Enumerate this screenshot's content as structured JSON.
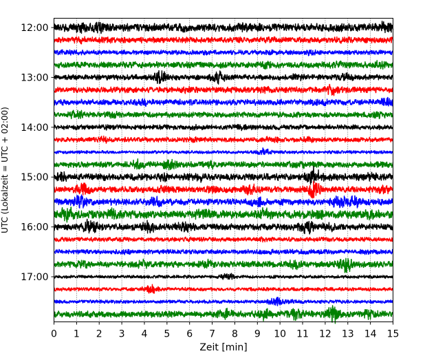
{
  "chart_data": {
    "type": "line",
    "title": "",
    "xlabel": "Zeit  [min]",
    "ylabel": "UTC (Lokalzeit = UTC + 02:00)",
    "xlim": [
      0,
      15
    ],
    "x_ticks": [
      "0",
      "1",
      "2",
      "3",
      "4",
      "5",
      "6",
      "7",
      "8",
      "9",
      "10",
      "11",
      "12",
      "13",
      "14",
      "15"
    ],
    "y_ticks": [
      "12:00",
      "13:00",
      "14:00",
      "15:00",
      "16:00",
      "17:00"
    ],
    "grid": "vertical dotted lines at each minute",
    "trace_interval_minutes": 15,
    "trace_colors": [
      "#000000",
      "#ff0000",
      "#0000ff",
      "#008000"
    ],
    "traces": [
      {
        "start": "12:00",
        "color": "#000000",
        "amp": 0.55,
        "bursts": [
          [
            1.2,
            1.4
          ],
          [
            2.0,
            1.6
          ],
          [
            5.8,
            1.4
          ],
          [
            8.3,
            1.4
          ],
          [
            14.6,
            1.6
          ]
        ]
      },
      {
        "start": "12:15",
        "color": "#ff0000",
        "amp": 0.4,
        "bursts": [
          [
            1.2,
            1.3
          ],
          [
            2.3,
            1.4
          ],
          [
            9.8,
            1.3
          ],
          [
            12.8,
            1.3
          ]
        ]
      },
      {
        "start": "12:30",
        "color": "#0000ff",
        "amp": 0.32,
        "bursts": [
          [
            0.6,
            1.3
          ],
          [
            6.8,
            1.3
          ],
          [
            9.5,
            1.3
          ],
          [
            11.3,
            1.4
          ]
        ]
      },
      {
        "start": "12:45",
        "color": "#008000",
        "amp": 0.42,
        "bursts": [
          [
            9.4,
            1.4
          ],
          [
            12.5,
            1.6
          ],
          [
            14.4,
            1.5
          ]
        ]
      },
      {
        "start": "13:00",
        "color": "#000000",
        "amp": 0.38,
        "bursts": [
          [
            4.7,
            2.8
          ],
          [
            7.3,
            2.6
          ],
          [
            10.8,
            1.5
          ],
          [
            12.9,
            1.6
          ]
        ]
      },
      {
        "start": "13:15",
        "color": "#ff0000",
        "amp": 0.4,
        "bursts": [
          [
            5.9,
            1.3
          ],
          [
            9.4,
            1.3
          ],
          [
            12.3,
            2.2
          ]
        ]
      },
      {
        "start": "13:30",
        "color": "#0000ff",
        "amp": 0.4,
        "bursts": [
          [
            4.0,
            1.5
          ],
          [
            11.7,
            1.7
          ],
          [
            14.7,
            1.8
          ]
        ]
      },
      {
        "start": "13:45",
        "color": "#008000",
        "amp": 0.38,
        "bursts": [
          [
            1.0,
            2.0
          ],
          [
            2.6,
            1.4
          ],
          [
            5.7,
            1.3
          ],
          [
            14.4,
            1.5
          ]
        ]
      },
      {
        "start": "14:00",
        "color": "#000000",
        "amp": 0.34,
        "bursts": [
          [
            2.5,
            1.3
          ],
          [
            6.2,
            1.3
          ],
          [
            8.4,
            1.4
          ]
        ]
      },
      {
        "start": "14:15",
        "color": "#ff0000",
        "amp": 0.32,
        "bursts": [
          [
            2.2,
            1.6
          ],
          [
            6.3,
            1.6
          ],
          [
            9.6,
            1.8
          ],
          [
            11.2,
            1.6
          ]
        ]
      },
      {
        "start": "14:30",
        "color": "#0000ff",
        "amp": 0.22,
        "bursts": [
          [
            9.3,
            2.6
          ]
        ]
      },
      {
        "start": "14:45",
        "color": "#008000",
        "amp": 0.4,
        "bursts": [
          [
            3.7,
            2.0
          ],
          [
            5.1,
            2.6
          ],
          [
            6.9,
            1.6
          ],
          [
            10.8,
            1.7
          ],
          [
            14.6,
            1.5
          ]
        ]
      },
      {
        "start": "15:00",
        "color": "#000000",
        "amp": 0.48,
        "bursts": [
          [
            0.3,
            1.8
          ],
          [
            4.8,
            1.4
          ],
          [
            6.4,
            1.6
          ],
          [
            11.5,
            3.0
          ],
          [
            14.0,
            1.5
          ]
        ]
      },
      {
        "start": "15:15",
        "color": "#ff0000",
        "amp": 0.42,
        "bursts": [
          [
            1.3,
            2.3
          ],
          [
            4.8,
            1.6
          ],
          [
            7.0,
            2.0
          ],
          [
            8.7,
            2.0
          ],
          [
            11.5,
            3.6
          ],
          [
            14.6,
            1.6
          ]
        ]
      },
      {
        "start": "15:30",
        "color": "#0000ff",
        "amp": 0.45,
        "bursts": [
          [
            1.1,
            2.6
          ],
          [
            4.5,
            1.8
          ],
          [
            9.0,
            2.0
          ],
          [
            12.6,
            2.5
          ],
          [
            13.3,
            2.2
          ]
        ]
      },
      {
        "start": "15:45",
        "color": "#008000",
        "amp": 0.55,
        "bursts": [
          [
            0.6,
            2.4
          ],
          [
            2.6,
            1.7
          ],
          [
            6.6,
            1.7
          ],
          [
            9.3,
            1.8
          ],
          [
            11.8,
            1.6
          ],
          [
            14.0,
            2.0
          ]
        ]
      },
      {
        "start": "16:00",
        "color": "#000000",
        "amp": 0.45,
        "bursts": [
          [
            1.6,
            2.6
          ],
          [
            4.2,
            2.2
          ],
          [
            5.7,
            2.2
          ],
          [
            11.2,
            2.4
          ],
          [
            12.2,
            1.6
          ]
        ]
      },
      {
        "start": "16:15",
        "color": "#ff0000",
        "amp": 0.3,
        "bursts": [
          [
            6.2,
            1.4
          ],
          [
            9.4,
            1.4
          ]
        ]
      },
      {
        "start": "16:30",
        "color": "#0000ff",
        "amp": 0.32,
        "bursts": [
          [
            3.2,
            1.4
          ],
          [
            9.4,
            1.4
          ],
          [
            11.3,
            1.4
          ],
          [
            13.8,
            1.4
          ]
        ]
      },
      {
        "start": "16:45",
        "color": "#008000",
        "amp": 0.42,
        "bursts": [
          [
            1.3,
            1.6
          ],
          [
            3.9,
            1.7
          ],
          [
            6.8,
            1.7
          ],
          [
            10.6,
            2.0
          ],
          [
            12.9,
            3.0
          ]
        ]
      },
      {
        "start": "17:00",
        "color": "#000000",
        "amp": 0.22,
        "bursts": [
          [
            7.7,
            2.3
          ]
        ]
      },
      {
        "start": "17:15",
        "color": "#ff0000",
        "amp": 0.25,
        "bursts": [
          [
            4.3,
            3.3
          ]
        ]
      },
      {
        "start": "17:30",
        "color": "#0000ff",
        "amp": 0.24,
        "bursts": [
          [
            9.8,
            2.8
          ],
          [
            10.7,
            1.6
          ]
        ]
      },
      {
        "start": "17:45",
        "color": "#008000",
        "amp": 0.45,
        "bursts": [
          [
            7.6,
            2.0
          ],
          [
            9.3,
            2.2
          ],
          [
            10.7,
            2.2
          ],
          [
            12.4,
            3.1
          ],
          [
            13.9,
            1.7
          ]
        ]
      }
    ]
  }
}
